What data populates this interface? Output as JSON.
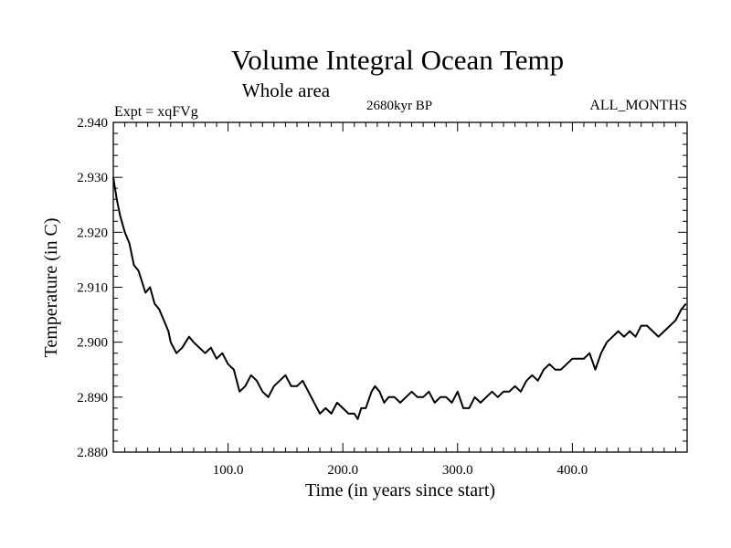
{
  "chart_data": {
    "type": "line",
    "title": "Volume Integral Ocean Temp",
    "subtitle": "Whole area",
    "annotations": {
      "left": "Expt = xqFVg",
      "center": "2680kyr BP",
      "right": "ALL_MONTHS"
    },
    "xlabel": "Time (in years since start)",
    "ylabel": "Temperature (in C)",
    "xlim": [
      0,
      500
    ],
    "ylim": [
      2.88,
      2.94
    ],
    "x_ticks": [
      100,
      200,
      300,
      400
    ],
    "x_tick_labels": [
      "100.0",
      "200.0",
      "300.0",
      "400.0"
    ],
    "y_ticks": [
      2.88,
      2.89,
      2.9,
      2.91,
      2.92,
      2.93,
      2.94
    ],
    "y_tick_labels": [
      "2.880",
      "2.890",
      "2.900",
      "2.910",
      "2.920",
      "2.930",
      "2.940"
    ],
    "grid": false,
    "series": [
      {
        "name": "Volume integral ocean temperature",
        "color": "#000000",
        "x": [
          0,
          3,
          6,
          10,
          14,
          18,
          22,
          25,
          28,
          32,
          36,
          40,
          44,
          48,
          50,
          55,
          60,
          63,
          66,
          70,
          75,
          80,
          85,
          90,
          95,
          100,
          105,
          110,
          115,
          120,
          125,
          130,
          135,
          140,
          145,
          150,
          155,
          160,
          165,
          170,
          175,
          180,
          185,
          190,
          195,
          200,
          205,
          210,
          213,
          216,
          220,
          225,
          228,
          232,
          236,
          240,
          245,
          250,
          255,
          260,
          265,
          270,
          275,
          280,
          285,
          290,
          295,
          300,
          305,
          310,
          315,
          320,
          325,
          330,
          335,
          340,
          345,
          350,
          355,
          360,
          365,
          370,
          375,
          380,
          385,
          390,
          395,
          400,
          405,
          410,
          415,
          420,
          425,
          430,
          435,
          440,
          445,
          450,
          455,
          460,
          465,
          470,
          475,
          480,
          485,
          490,
          495,
          499
        ],
        "values": [
          2.93,
          2.926,
          2.923,
          2.92,
          2.918,
          2.914,
          2.913,
          2.911,
          2.909,
          2.91,
          2.907,
          2.906,
          2.904,
          2.902,
          2.9,
          2.898,
          2.899,
          2.9,
          2.901,
          2.9,
          2.899,
          2.898,
          2.899,
          2.897,
          2.898,
          2.896,
          2.895,
          2.891,
          2.892,
          2.894,
          2.893,
          2.891,
          2.89,
          2.892,
          2.893,
          2.894,
          2.892,
          2.892,
          2.893,
          2.891,
          2.889,
          2.887,
          2.888,
          2.887,
          2.889,
          2.888,
          2.887,
          2.887,
          2.886,
          2.888,
          2.888,
          2.891,
          2.892,
          2.891,
          2.889,
          2.89,
          2.89,
          2.889,
          2.89,
          2.891,
          2.89,
          2.89,
          2.891,
          2.889,
          2.89,
          2.89,
          2.889,
          2.891,
          2.888,
          2.888,
          2.89,
          2.889,
          2.89,
          2.891,
          2.89,
          2.891,
          2.891,
          2.892,
          2.891,
          2.893,
          2.894,
          2.893,
          2.895,
          2.896,
          2.895,
          2.895,
          2.896,
          2.897,
          2.897,
          2.897,
          2.898,
          2.895,
          2.898,
          2.9,
          2.901,
          2.902,
          2.901,
          2.902,
          2.901,
          2.903,
          2.903,
          2.902,
          2.901,
          2.902,
          2.903,
          2.904,
          2.906,
          2.907
        ]
      }
    ]
  }
}
